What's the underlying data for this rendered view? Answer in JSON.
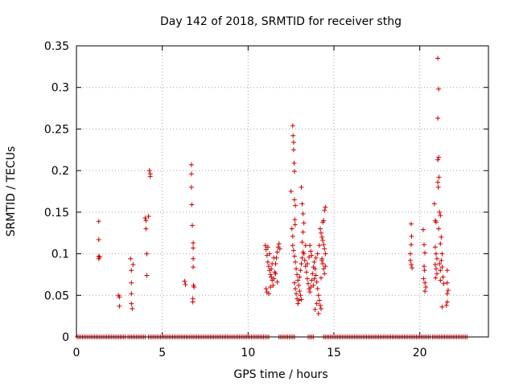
{
  "chart_data": {
    "type": "scatter",
    "title": "Day 142 of 2018, SRMTID for receiver sthg",
    "xlabel": "GPS time / hours",
    "ylabel": "SRMTID / TECUs",
    "xlim": [
      0,
      24
    ],
    "ylim": [
      0,
      0.35
    ],
    "x_ticks": [
      0,
      5,
      10,
      15,
      20
    ],
    "x_tick_labels": [
      "0",
      "5",
      "10",
      "15",
      "20"
    ],
    "y_ticks": [
      0,
      0.05,
      0.1,
      0.15,
      0.2,
      0.25,
      0.3,
      0.35
    ],
    "y_tick_labels": [
      "0",
      "0.05",
      "0.1",
      "0.15",
      "0.2",
      "0.25",
      "0.3",
      "0.35"
    ],
    "grid": true,
    "marker": "+",
    "series_color": "#cc0000",
    "zero_segments": [
      [
        0.05,
        2.9
      ],
      [
        3.0,
        4.0
      ],
      [
        4.2,
        11.2
      ],
      [
        11.8,
        12.7
      ],
      [
        13.5,
        13.8
      ],
      [
        14.4,
        19.7
      ],
      [
        19.8,
        20.6
      ],
      [
        20.75,
        22.8
      ]
    ],
    "zero_spacing": 0.1,
    "series": [
      {
        "name": "SRMTID",
        "points": [
          [
            1.3,
            0.139
          ],
          [
            1.3,
            0.117
          ],
          [
            1.3,
            0.097
          ],
          [
            1.3,
            0.094
          ],
          [
            1.35,
            0.096
          ],
          [
            2.45,
            0.05
          ],
          [
            2.5,
            0.048
          ],
          [
            2.5,
            0.037
          ],
          [
            3.15,
            0.094
          ],
          [
            3.2,
            0.08
          ],
          [
            3.2,
            0.065
          ],
          [
            3.2,
            0.052
          ],
          [
            3.2,
            0.04
          ],
          [
            3.25,
            0.034
          ],
          [
            3.3,
            0.087
          ],
          [
            4.0,
            0.143
          ],
          [
            4.05,
            0.14
          ],
          [
            4.05,
            0.13
          ],
          [
            4.1,
            0.1
          ],
          [
            4.1,
            0.074
          ],
          [
            4.2,
            0.145
          ],
          [
            4.25,
            0.2
          ],
          [
            4.3,
            0.196
          ],
          [
            4.3,
            0.193
          ],
          [
            6.3,
            0.067
          ],
          [
            6.35,
            0.063
          ],
          [
            6.7,
            0.207
          ],
          [
            6.7,
            0.196
          ],
          [
            6.7,
            0.18
          ],
          [
            6.72,
            0.159
          ],
          [
            6.75,
            0.134
          ],
          [
            6.8,
            0.113
          ],
          [
            6.8,
            0.107
          ],
          [
            6.8,
            0.094
          ],
          [
            6.8,
            0.084
          ],
          [
            6.82,
            0.062
          ],
          [
            6.85,
            0.06
          ],
          [
            6.78,
            0.046
          ],
          [
            6.78,
            0.042
          ],
          [
            11.0,
            0.11
          ],
          [
            11.05,
            0.105
          ],
          [
            11.1,
            0.098
          ],
          [
            11.15,
            0.09
          ],
          [
            11.2,
            0.085
          ],
          [
            11.25,
            0.08
          ],
          [
            11.3,
            0.075
          ],
          [
            11.35,
            0.072
          ],
          [
            11.4,
            0.068
          ],
          [
            11.45,
            0.062
          ],
          [
            11.05,
            0.058
          ],
          [
            11.1,
            0.054
          ],
          [
            11.2,
            0.052
          ],
          [
            11.3,
            0.06
          ],
          [
            11.5,
            0.07
          ],
          [
            11.55,
            0.078
          ],
          [
            11.6,
            0.088
          ],
          [
            11.65,
            0.095
          ],
          [
            11.7,
            0.102
          ],
          [
            11.75,
            0.108
          ],
          [
            11.8,
            0.112
          ],
          [
            11.85,
            0.106
          ],
          [
            11.5,
            0.095
          ],
          [
            11.4,
            0.088
          ],
          [
            11.25,
            0.1
          ],
          [
            11.15,
            0.108
          ],
          [
            11.35,
            0.082
          ],
          [
            11.6,
            0.076
          ],
          [
            11.7,
            0.066
          ],
          [
            12.5,
            0.175
          ],
          [
            12.55,
            0.13
          ],
          [
            12.6,
            0.121
          ],
          [
            12.6,
            0.254
          ],
          [
            12.62,
            0.242
          ],
          [
            12.65,
            0.234
          ],
          [
            12.65,
            0.225
          ],
          [
            12.68,
            0.209
          ],
          [
            12.7,
            0.199
          ],
          [
            12.7,
            0.165
          ],
          [
            12.75,
            0.158
          ],
          [
            12.72,
            0.141
          ],
          [
            12.74,
            0.135
          ],
          [
            12.6,
            0.11
          ],
          [
            12.65,
            0.104
          ],
          [
            12.7,
            0.097
          ],
          [
            12.75,
            0.09
          ],
          [
            12.8,
            0.082
          ],
          [
            12.85,
            0.075
          ],
          [
            12.9,
            0.068
          ],
          [
            12.95,
            0.062
          ],
          [
            13.0,
            0.055
          ],
          [
            13.05,
            0.05
          ],
          [
            13.1,
            0.045
          ],
          [
            12.7,
            0.065
          ],
          [
            12.75,
            0.058
          ],
          [
            12.8,
            0.052
          ],
          [
            12.85,
            0.046
          ],
          [
            12.9,
            0.04
          ],
          [
            12.95,
            0.044
          ],
          [
            13.0,
            0.072
          ],
          [
            13.05,
            0.08
          ],
          [
            13.1,
            0.088
          ],
          [
            13.15,
            0.095
          ],
          [
            13.2,
            0.102
          ],
          [
            13.25,
            0.1
          ],
          [
            13.1,
            0.18
          ],
          [
            13.15,
            0.16
          ],
          [
            13.2,
            0.148
          ],
          [
            13.25,
            0.137
          ],
          [
            13.2,
            0.126
          ],
          [
            13.15,
            0.114
          ],
          [
            13.3,
            0.092
          ],
          [
            13.35,
            0.085
          ],
          [
            13.4,
            0.078
          ],
          [
            13.45,
            0.07
          ],
          [
            13.5,
            0.064
          ],
          [
            13.55,
            0.058
          ],
          [
            13.6,
            0.054
          ],
          [
            13.65,
            0.06
          ],
          [
            13.7,
            0.068
          ],
          [
            13.75,
            0.076
          ],
          [
            13.8,
            0.084
          ],
          [
            13.85,
            0.09
          ],
          [
            13.9,
            0.082
          ],
          [
            13.95,
            0.074
          ],
          [
            14.0,
            0.066
          ],
          [
            14.05,
            0.058
          ],
          [
            14.1,
            0.05
          ],
          [
            14.15,
            0.044
          ],
          [
            14.2,
            0.038
          ],
          [
            14.25,
            0.034
          ],
          [
            14.1,
            0.028
          ],
          [
            13.9,
            0.033
          ],
          [
            14.0,
            0.04
          ],
          [
            13.6,
            0.11
          ],
          [
            13.65,
            0.103
          ],
          [
            13.55,
            0.096
          ],
          [
            13.45,
            0.088
          ],
          [
            13.35,
            0.11
          ],
          [
            13.7,
            0.098
          ],
          [
            13.8,
            0.062
          ],
          [
            13.85,
            0.07
          ],
          [
            13.95,
            0.095
          ],
          [
            14.05,
            0.1
          ],
          [
            14.15,
            0.11
          ],
          [
            14.2,
            0.13
          ],
          [
            14.25,
            0.125
          ],
          [
            14.3,
            0.12
          ],
          [
            14.35,
            0.116
          ],
          [
            14.4,
            0.111
          ],
          [
            14.45,
            0.106
          ],
          [
            14.5,
            0.1
          ],
          [
            14.3,
            0.094
          ],
          [
            14.35,
            0.088
          ],
          [
            14.4,
            0.082
          ],
          [
            14.45,
            0.076
          ],
          [
            14.25,
            0.071
          ],
          [
            14.5,
            0.085
          ],
          [
            14.4,
            0.14
          ],
          [
            14.45,
            0.152
          ],
          [
            14.5,
            0.156
          ],
          [
            14.35,
            0.138
          ],
          [
            14.3,
            0.092
          ],
          [
            19.5,
            0.136
          ],
          [
            19.52,
            0.121
          ],
          [
            19.5,
            0.111
          ],
          [
            19.45,
            0.1
          ],
          [
            19.45,
            0.092
          ],
          [
            19.5,
            0.087
          ],
          [
            19.55,
            0.083
          ],
          [
            20.2,
            0.129
          ],
          [
            20.25,
            0.111
          ],
          [
            20.3,
            0.101
          ],
          [
            20.25,
            0.085
          ],
          [
            20.28,
            0.08
          ],
          [
            20.22,
            0.07
          ],
          [
            20.3,
            0.065
          ],
          [
            20.35,
            0.06
          ],
          [
            20.3,
            0.055
          ],
          [
            20.85,
            0.16
          ],
          [
            20.9,
            0.14
          ],
          [
            20.95,
            0.138
          ],
          [
            20.9,
            0.108
          ],
          [
            20.95,
            0.1
          ],
          [
            21.0,
            0.094
          ],
          [
            20.9,
            0.087
          ],
          [
            20.95,
            0.082
          ],
          [
            21.0,
            0.076
          ],
          [
            20.92,
            0.071
          ],
          [
            21.05,
            0.335
          ],
          [
            21.1,
            0.298
          ],
          [
            21.05,
            0.263
          ],
          [
            21.1,
            0.216
          ],
          [
            21.05,
            0.213
          ],
          [
            21.12,
            0.192
          ],
          [
            21.05,
            0.186
          ],
          [
            21.08,
            0.18
          ],
          [
            21.15,
            0.15
          ],
          [
            21.2,
            0.146
          ],
          [
            21.1,
            0.13
          ],
          [
            21.25,
            0.12
          ],
          [
            21.2,
            0.112
          ],
          [
            21.3,
            0.1
          ],
          [
            21.25,
            0.092
          ],
          [
            21.15,
            0.088
          ],
          [
            21.3,
            0.084
          ],
          [
            21.2,
            0.08
          ],
          [
            21.35,
            0.072
          ],
          [
            21.2,
            0.068
          ],
          [
            21.4,
            0.064
          ],
          [
            21.3,
            0.036
          ],
          [
            21.55,
            0.038
          ],
          [
            21.6,
            0.042
          ],
          [
            21.6,
            0.052
          ],
          [
            21.65,
            0.056
          ],
          [
            21.6,
            0.065
          ],
          [
            21.6,
            0.08
          ]
        ]
      }
    ]
  }
}
